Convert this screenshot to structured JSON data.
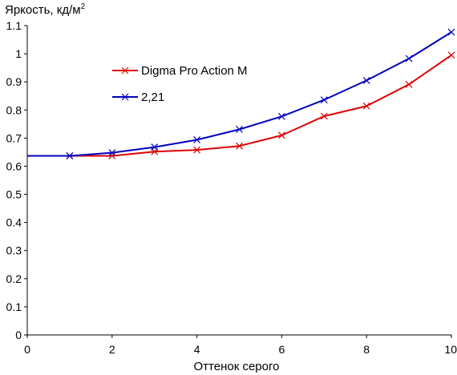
{
  "chart_data": {
    "type": "line",
    "ylabel": "Яркость, кд/м",
    "ylabel_sup": "2",
    "xlabel": "Оттенок серого",
    "xlim": [
      0,
      10
    ],
    "ylim": [
      0,
      1.1
    ],
    "xticks": [
      0,
      2,
      4,
      6,
      8,
      10
    ],
    "xtick_labels": [
      "0",
      "2",
      "4",
      "6",
      "8",
      "10"
    ],
    "yticks": [
      0,
      0.1,
      0.2,
      0.3,
      0.4,
      0.5,
      0.6,
      0.7,
      0.8,
      0.9,
      1,
      1.1
    ],
    "ytick_labels": [
      "0",
      "0.1",
      "0.2",
      "0.3",
      "0.4",
      "0.5",
      "0.6",
      "0.7",
      "0.8",
      "0.9",
      "1",
      "1.1"
    ],
    "grid": false,
    "legend_position": "upper-left inside plot",
    "series": [
      {
        "name": "Digma Pro Action M",
        "color": "#e00000",
        "marker": "x",
        "x": [
          0,
          1,
          2,
          3,
          4,
          5,
          6,
          7,
          8,
          9,
          10
        ],
        "y": [
          0.637,
          0.637,
          0.637,
          0.652,
          0.658,
          0.672,
          0.71,
          0.778,
          0.814,
          0.891,
          0.995
        ]
      },
      {
        "name": "2,21",
        "color": "#0000c0",
        "marker": "x",
        "x": [
          0,
          1,
          2,
          3,
          4,
          5,
          6,
          7,
          8,
          9,
          10
        ],
        "y": [
          0.637,
          0.637,
          0.648,
          0.668,
          0.694,
          0.731,
          0.777,
          0.836,
          0.905,
          0.983,
          1.077
        ]
      }
    ]
  }
}
